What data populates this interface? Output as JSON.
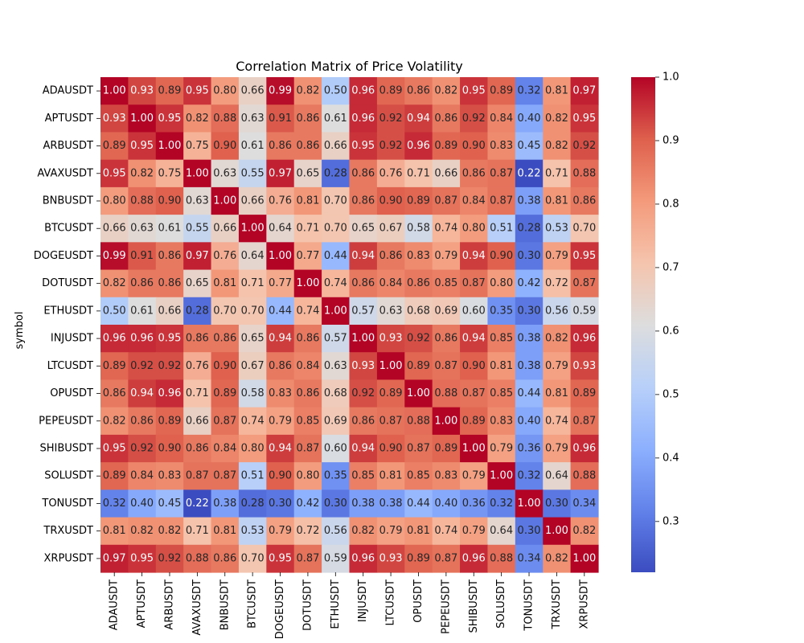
{
  "chart_data": {
    "type": "heatmap",
    "title": "Correlation Matrix of Price Volatility",
    "xlabel": "",
    "ylabel": "symbol",
    "labels": [
      "ADAUSDT",
      "APTUSDT",
      "ARBUSDT",
      "AVAXUSDT",
      "BNBUSDT",
      "BTCUSDT",
      "DOGEUSDT",
      "DOTUSDT",
      "ETHUSDT",
      "INJUSDT",
      "LTCUSDT",
      "OPUSDT",
      "PEPEUSDT",
      "SHIBUSDT",
      "SOLUSDT",
      "TONUSDT",
      "TRXUSDT",
      "XRPUSDT"
    ],
    "matrix": [
      [
        1.0,
        0.93,
        0.89,
        0.95,
        0.8,
        0.66,
        0.99,
        0.82,
        0.5,
        0.96,
        0.89,
        0.86,
        0.82,
        0.95,
        0.89,
        0.32,
        0.81,
        0.97
      ],
      [
        0.93,
        1.0,
        0.95,
        0.82,
        0.88,
        0.63,
        0.91,
        0.86,
        0.61,
        0.96,
        0.92,
        0.94,
        0.86,
        0.92,
        0.84,
        0.4,
        0.82,
        0.95
      ],
      [
        0.89,
        0.95,
        1.0,
        0.75,
        0.9,
        0.61,
        0.86,
        0.86,
        0.66,
        0.95,
        0.92,
        0.96,
        0.89,
        0.9,
        0.83,
        0.45,
        0.82,
        0.92
      ],
      [
        0.95,
        0.82,
        0.75,
        1.0,
        0.63,
        0.55,
        0.97,
        0.65,
        0.28,
        0.86,
        0.76,
        0.71,
        0.66,
        0.86,
        0.87,
        0.22,
        0.71,
        0.88
      ],
      [
        0.8,
        0.88,
        0.9,
        0.63,
        1.0,
        0.66,
        0.76,
        0.81,
        0.7,
        0.86,
        0.9,
        0.89,
        0.87,
        0.84,
        0.87,
        0.38,
        0.81,
        0.86
      ],
      [
        0.66,
        0.63,
        0.61,
        0.55,
        0.66,
        1.0,
        0.64,
        0.71,
        0.7,
        0.65,
        0.67,
        0.58,
        0.74,
        0.8,
        0.51,
        0.28,
        0.53,
        0.7
      ],
      [
        0.99,
        0.91,
        0.86,
        0.97,
        0.76,
        0.64,
        1.0,
        0.77,
        0.44,
        0.94,
        0.86,
        0.83,
        0.79,
        0.94,
        0.9,
        0.3,
        0.79,
        0.95
      ],
      [
        0.82,
        0.86,
        0.86,
        0.65,
        0.81,
        0.71,
        0.77,
        1.0,
        0.74,
        0.86,
        0.84,
        0.86,
        0.85,
        0.87,
        0.8,
        0.42,
        0.72,
        0.87
      ],
      [
        0.5,
        0.61,
        0.66,
        0.28,
        0.7,
        0.7,
        0.44,
        0.74,
        1.0,
        0.57,
        0.63,
        0.68,
        0.69,
        0.6,
        0.35,
        0.3,
        0.56,
        0.59
      ],
      [
        0.96,
        0.96,
        0.95,
        0.86,
        0.86,
        0.65,
        0.94,
        0.86,
        0.57,
        1.0,
        0.93,
        0.92,
        0.86,
        0.94,
        0.85,
        0.38,
        0.82,
        0.96
      ],
      [
        0.89,
        0.92,
        0.92,
        0.76,
        0.9,
        0.67,
        0.86,
        0.84,
        0.63,
        0.93,
        1.0,
        0.89,
        0.87,
        0.9,
        0.81,
        0.38,
        0.79,
        0.93
      ],
      [
        0.86,
        0.94,
        0.96,
        0.71,
        0.89,
        0.58,
        0.83,
        0.86,
        0.68,
        0.92,
        0.89,
        1.0,
        0.88,
        0.87,
        0.85,
        0.44,
        0.81,
        0.89
      ],
      [
        0.82,
        0.86,
        0.89,
        0.66,
        0.87,
        0.74,
        0.79,
        0.85,
        0.69,
        0.86,
        0.87,
        0.88,
        1.0,
        0.89,
        0.83,
        0.4,
        0.74,
        0.87
      ],
      [
        0.95,
        0.92,
        0.9,
        0.86,
        0.84,
        0.8,
        0.94,
        0.87,
        0.6,
        0.94,
        0.9,
        0.87,
        0.89,
        1.0,
        0.79,
        0.36,
        0.79,
        0.96
      ],
      [
        0.89,
        0.84,
        0.83,
        0.87,
        0.87,
        0.51,
        0.9,
        0.8,
        0.35,
        0.85,
        0.81,
        0.85,
        0.83,
        0.79,
        1.0,
        0.32,
        0.64,
        0.88
      ],
      [
        0.32,
        0.4,
        0.45,
        0.22,
        0.38,
        0.28,
        0.3,
        0.42,
        0.3,
        0.38,
        0.38,
        0.44,
        0.4,
        0.36,
        0.32,
        1.0,
        0.3,
        0.34
      ],
      [
        0.81,
        0.82,
        0.82,
        0.71,
        0.81,
        0.53,
        0.79,
        0.72,
        0.56,
        0.82,
        0.79,
        0.81,
        0.74,
        0.79,
        0.64,
        0.3,
        1.0,
        0.82
      ],
      [
        0.97,
        0.95,
        0.92,
        0.88,
        0.86,
        0.7,
        0.95,
        0.87,
        0.59,
        0.96,
        0.93,
        0.89,
        0.87,
        0.96,
        0.88,
        0.34,
        0.82,
        1.0
      ]
    ],
    "colorscale": "coolwarm",
    "colorbar": {
      "min": 0.22,
      "max": 1.0,
      "ticks": [
        0.3,
        0.4,
        0.5,
        0.6,
        0.7,
        0.8,
        0.9,
        1.0
      ]
    },
    "annotation_format": "0.00",
    "grid": false,
    "legend": "colorbar-right"
  }
}
